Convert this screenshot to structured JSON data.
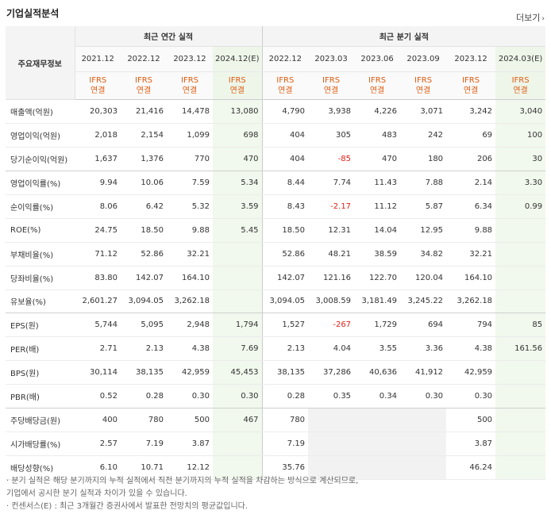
{
  "title": "기업실적분석",
  "more": "더보기",
  "corner_label": "주요재무정보",
  "annual_header": "최근 연간 실적",
  "quarter_header": "최근 분기 실적",
  "annual_periods": [
    "2021.12",
    "2022.12",
    "2023.12",
    "2024.12(E)"
  ],
  "quarter_periods": [
    "2022.12",
    "2023.03",
    "2023.06",
    "2023.09",
    "2023.12",
    "2024.03(E)"
  ],
  "ifrs_line1": "IFRS",
  "ifrs_line2": "연결",
  "rows": [
    {
      "label": "매출액(억원)",
      "values": [
        "20,303",
        "21,416",
        "14,478",
        "13,080",
        "4,790",
        "3,938",
        "4,226",
        "3,071",
        "3,242",
        "3,040"
      ]
    },
    {
      "label": "영업이익(억원)",
      "values": [
        "2,018",
        "2,154",
        "1,099",
        "698",
        "404",
        "305",
        "483",
        "242",
        "69",
        "100"
      ]
    },
    {
      "label": "당기순이익(억원)",
      "values": [
        "1,637",
        "1,376",
        "770",
        "470",
        "404",
        "-85",
        "470",
        "180",
        "206",
        "30"
      ]
    },
    {
      "label": "영업이익률(%)",
      "values": [
        "9.94",
        "10.06",
        "7.59",
        "5.34",
        "8.44",
        "7.74",
        "11.43",
        "7.88",
        "2.14",
        "3.30"
      ]
    },
    {
      "label": "순이익률(%)",
      "values": [
        "8.06",
        "6.42",
        "5.32",
        "3.59",
        "8.43",
        "-2.17",
        "11.12",
        "5.87",
        "6.34",
        "0.99"
      ]
    },
    {
      "label": "ROE(%)",
      "values": [
        "24.75",
        "18.50",
        "9.88",
        "5.45",
        "18.50",
        "12.31",
        "14.04",
        "12.95",
        "9.88",
        ""
      ]
    },
    {
      "label": "부채비율(%)",
      "values": [
        "71.12",
        "52.86",
        "32.21",
        "",
        "52.86",
        "48.21",
        "38.59",
        "34.82",
        "32.21",
        ""
      ]
    },
    {
      "label": "당좌비율(%)",
      "values": [
        "83.80",
        "142.07",
        "164.10",
        "",
        "142.07",
        "121.16",
        "122.70",
        "120.04",
        "164.10",
        ""
      ]
    },
    {
      "label": "유보율(%)",
      "values": [
        "2,601.27",
        "3,094.05",
        "3,262.18",
        "",
        "3,094.05",
        "3,008.59",
        "3,181.49",
        "3,245.22",
        "3,262.18",
        ""
      ]
    },
    {
      "label": "EPS(원)",
      "values": [
        "5,744",
        "5,095",
        "2,948",
        "1,794",
        "1,527",
        "-267",
        "1,729",
        "694",
        "794",
        "85"
      ]
    },
    {
      "label": "PER(배)",
      "values": [
        "2.71",
        "2.13",
        "4.38",
        "7.69",
        "2.13",
        "4.04",
        "3.55",
        "3.36",
        "4.38",
        "161.56"
      ]
    },
    {
      "label": "BPS(원)",
      "values": [
        "30,114",
        "38,135",
        "42,959",
        "45,453",
        "38,135",
        "37,286",
        "40,636",
        "41,912",
        "42,959",
        ""
      ]
    },
    {
      "label": "PBR(배)",
      "values": [
        "0.52",
        "0.28",
        "0.30",
        "0.30",
        "0.28",
        "0.35",
        "0.34",
        "0.30",
        "0.30",
        ""
      ]
    },
    {
      "label": "주당배당금(원)",
      "values": [
        "400",
        "780",
        "500",
        "467",
        "780",
        "",
        "",
        "",
        "500",
        ""
      ]
    },
    {
      "label": "시가배당률(%)",
      "values": [
        "2.57",
        "7.19",
        "3.87",
        "",
        "7.19",
        "",
        "",
        "",
        "3.87",
        ""
      ]
    },
    {
      "label": "배당성향(%)",
      "values": [
        "6.10",
        "10.71",
        "12.12",
        "",
        "35.76",
        "",
        "",
        "",
        "46.24",
        ""
      ]
    }
  ],
  "notes": [
    "· 분기 실적은 해당 분기까지의 누적 실적에서 직전 분기까지의 누적 실적을 차감하는 방식으로 계산되므로,",
    "   기업에서 공시한 분기 실적과 차이가 있을 수 있습니다.",
    "· 컨센서스(E) : 최근 3개월간 증권사에서 발표한 전망치의 평균값입니다."
  ]
}
